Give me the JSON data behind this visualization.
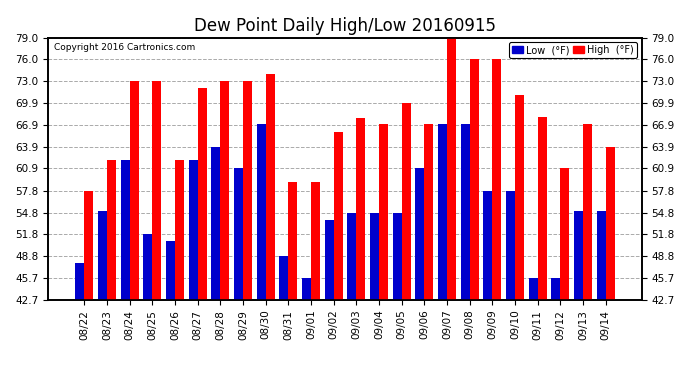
{
  "title": "Dew Point Daily High/Low 20160915",
  "copyright": "Copyright 2016 Cartronics.com",
  "dates": [
    "08/22",
    "08/23",
    "08/24",
    "08/25",
    "08/26",
    "08/27",
    "08/28",
    "08/29",
    "08/30",
    "08/31",
    "09/01",
    "09/02",
    "09/03",
    "09/04",
    "09/05",
    "09/06",
    "09/07",
    "09/08",
    "09/09",
    "09/10",
    "09/11",
    "09/12",
    "09/13",
    "09/14"
  ],
  "highs": [
    57.8,
    62.0,
    73.0,
    73.0,
    62.0,
    72.0,
    73.0,
    73.0,
    74.0,
    59.0,
    59.0,
    65.9,
    67.9,
    67.0,
    70.0,
    67.0,
    79.0,
    76.0,
    76.0,
    71.0,
    68.0,
    60.9,
    67.0,
    63.9
  ],
  "lows": [
    47.8,
    55.0,
    62.0,
    51.8,
    50.9,
    62.0,
    63.9,
    60.9,
    67.0,
    48.8,
    45.7,
    53.8,
    54.8,
    54.8,
    54.8,
    60.9,
    67.0,
    67.0,
    57.8,
    57.8,
    45.7,
    45.7,
    55.0,
    55.0
  ],
  "high_color": "#ff0000",
  "low_color": "#0000cc",
  "bg_color": "#ffffff",
  "grid_color": "#aaaaaa",
  "ylim_min": 42.7,
  "ylim_max": 79.0,
  "yticks": [
    42.7,
    45.7,
    48.8,
    51.8,
    54.8,
    57.8,
    60.9,
    63.9,
    66.9,
    69.9,
    73.0,
    76.0,
    79.0
  ],
  "bar_width": 0.4,
  "title_fontsize": 12,
  "tick_fontsize": 7.5,
  "legend_high_label": "High  (°F)",
  "legend_low_label": "Low  (°F)"
}
